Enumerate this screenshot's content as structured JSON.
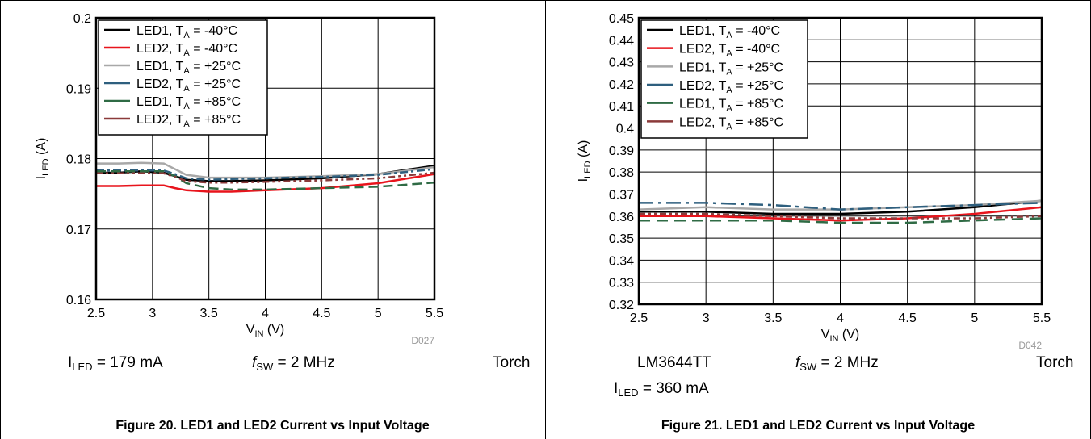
{
  "colors": {
    "LED1_m40": "#000000",
    "LED2_m40": "#e8141c",
    "LED1_p25": "#a8a8a8",
    "LED2_p25": "#2e5f7e",
    "LED1_p85": "#2f6b45",
    "LED2_p85": "#8b3a3a"
  },
  "panels": [
    {
      "conditions": {
        "iled_label": "I",
        "iled_sub": "LED",
        "iled_value": " = 179 mA",
        "fsw_f": "f",
        "fsw_sub": "SW",
        "fsw_value": " = 2 MHz",
        "mode": "Torch"
      },
      "caption": "Figure 20. LED1 and LED2 Current vs Input Voltage"
    },
    {
      "conditions": {
        "device": "LM3644TT",
        "iled_label": "I",
        "iled_sub": "LED",
        "iled_value": " = 360 mA",
        "fsw_f": "f",
        "fsw_sub": "SW",
        "fsw_value": " = 2 MHz",
        "mode": "Torch"
      },
      "caption": "Figure 21. LED1 and LED2 Current vs Input Voltage"
    }
  ],
  "chart_data": [
    {
      "type": "line",
      "title": "",
      "xlabel": "V",
      "xlabel_sub": "IN",
      "xlabel_unit": " (V)",
      "ylabel": "I",
      "ylabel_sub": "LED",
      "ylabel_unit": " (A)",
      "xlim": [
        2.5,
        5.5
      ],
      "ylim": [
        0.16,
        0.2
      ],
      "xticks": [
        2.5,
        3,
        3.5,
        4,
        4.5,
        5,
        5.5
      ],
      "xtick_labels": [
        "2.5",
        "3",
        "3.5",
        "4",
        "4.5",
        "5",
        "5.5"
      ],
      "yticks": [
        0.16,
        0.17,
        0.18,
        0.19,
        0.2
      ],
      "ytick_labels": [
        "0.16",
        "0.17",
        "0.18",
        "0.19",
        "0.2"
      ],
      "grid": true,
      "legend_position": "top-left",
      "code": "D027",
      "series": [
        {
          "name_main": "LED1, T",
          "name_sub": "A",
          "name_rest": " = -40°C",
          "color_key": "LED1_m40",
          "dash": "",
          "x": [
            2.5,
            2.7,
            2.9,
            3.1,
            3.2,
            3.3,
            3.5,
            3.7,
            4.0,
            4.5,
            5.0,
            5.5
          ],
          "y": [
            0.178,
            0.178,
            0.1782,
            0.178,
            0.1775,
            0.177,
            0.1768,
            0.1768,
            0.1769,
            0.1772,
            0.1778,
            0.179
          ]
        },
        {
          "name_main": "LED2, T",
          "name_sub": "A",
          "name_rest": " = -40°C",
          "color_key": "LED2_m40",
          "dash": "",
          "x": [
            2.5,
            2.7,
            2.9,
            3.1,
            3.2,
            3.3,
            3.5,
            3.7,
            4.0,
            4.5,
            5.0,
            5.5
          ],
          "y": [
            0.1761,
            0.1761,
            0.1762,
            0.1762,
            0.1758,
            0.1755,
            0.1753,
            0.1753,
            0.1755,
            0.1758,
            0.1765,
            0.1778
          ]
        },
        {
          "name_main": "LED1, T",
          "name_sub": "A",
          "name_rest": " = +25°C",
          "color_key": "LED1_p25",
          "dash": "",
          "x": [
            2.5,
            2.7,
            2.9,
            3.1,
            3.2,
            3.3,
            3.5,
            3.7,
            4.0,
            4.5,
            5.0,
            5.5
          ],
          "y": [
            0.1793,
            0.1793,
            0.1794,
            0.1793,
            0.1785,
            0.1777,
            0.1773,
            0.1773,
            0.1773,
            0.1775,
            0.1778,
            0.1788
          ]
        },
        {
          "name_main": "LED2, T",
          "name_sub": "A",
          "name_rest": " = +25°C",
          "color_key": "LED2_p25",
          "dash": "10,4,3,4",
          "x": [
            2.5,
            2.7,
            2.9,
            3.1,
            3.2,
            3.3,
            3.5,
            3.7,
            4.0,
            4.5,
            5.0,
            5.5
          ],
          "y": [
            0.1783,
            0.1783,
            0.1783,
            0.1783,
            0.1778,
            0.1772,
            0.177,
            0.1771,
            0.1772,
            0.1774,
            0.1777,
            0.1785
          ]
        },
        {
          "name_main": "LED1, T",
          "name_sub": "A",
          "name_rest": " = +85°C",
          "color_key": "LED1_p85",
          "dash": "12,6",
          "x": [
            2.5,
            2.7,
            2.9,
            3.1,
            3.2,
            3.3,
            3.5,
            3.7,
            4.0,
            4.5,
            5.0,
            5.5
          ],
          "y": [
            0.1782,
            0.1782,
            0.1782,
            0.1782,
            0.1775,
            0.1765,
            0.1758,
            0.1756,
            0.1756,
            0.1758,
            0.176,
            0.1766
          ]
        },
        {
          "name_main": "LED2, T",
          "name_sub": "A",
          "name_rest": " = +85°C",
          "color_key": "LED2_p85",
          "dash": "8,4,3,4,3,4",
          "x": [
            2.5,
            2.7,
            2.9,
            3.1,
            3.2,
            3.3,
            3.5,
            3.7,
            4.0,
            4.5,
            5.0,
            5.5
          ],
          "y": [
            0.1779,
            0.1779,
            0.1779,
            0.1779,
            0.1774,
            0.1768,
            0.1766,
            0.1766,
            0.1767,
            0.1769,
            0.1772,
            0.178
          ]
        }
      ]
    },
    {
      "type": "line",
      "title": "",
      "xlabel": "V",
      "xlabel_sub": "IN",
      "xlabel_unit": " (V)",
      "ylabel": "I",
      "ylabel_sub": "LED",
      "ylabel_unit": " (A)",
      "xlim": [
        2.5,
        5.5
      ],
      "ylim": [
        0.32,
        0.45
      ],
      "xticks": [
        2.5,
        3,
        3.5,
        4,
        4.5,
        5,
        5.5
      ],
      "xtick_labels": [
        "2.5",
        "3",
        "3.5",
        "4",
        "4.5",
        "5",
        "5.5"
      ],
      "yticks": [
        0.32,
        0.33,
        0.34,
        0.35,
        0.36,
        0.37,
        0.38,
        0.39,
        0.4,
        0.41,
        0.42,
        0.43,
        0.44,
        0.45
      ],
      "ytick_labels": [
        "0.32",
        "0.33",
        "0.34",
        "0.35",
        "0.36",
        "0.37",
        "0.38",
        "0.39",
        "0.4",
        "0.41",
        "0.42",
        "0.43",
        "0.44",
        "0.45"
      ],
      "grid": true,
      "legend_position": "top-left",
      "code": "D042",
      "series": [
        {
          "name_main": "LED1, T",
          "name_sub": "A",
          "name_rest": " = -40°C",
          "color_key": "LED1_m40",
          "dash": "",
          "x": [
            2.5,
            3.0,
            3.5,
            4.0,
            4.5,
            5.0,
            5.5
          ],
          "y": [
            0.362,
            0.362,
            0.361,
            0.361,
            0.362,
            0.364,
            0.367
          ]
        },
        {
          "name_main": "LED2, T",
          "name_sub": "A",
          "name_rest": " = -40°C",
          "color_key": "LED2_m40",
          "dash": "",
          "x": [
            2.5,
            3.0,
            3.5,
            4.0,
            4.5,
            5.0,
            5.5
          ],
          "y": [
            0.36,
            0.36,
            0.359,
            0.358,
            0.359,
            0.361,
            0.364
          ]
        },
        {
          "name_main": "LED1, T",
          "name_sub": "A",
          "name_rest": " = +25°C",
          "color_key": "LED1_p25",
          "dash": "",
          "x": [
            2.5,
            3.0,
            3.5,
            4.0,
            4.5,
            5.0,
            5.5
          ],
          "y": [
            0.363,
            0.364,
            0.363,
            0.363,
            0.364,
            0.365,
            0.367
          ]
        },
        {
          "name_main": "LED2, T",
          "name_sub": "A",
          "name_rest": " = +25°C",
          "color_key": "LED2_p25",
          "dash": "18,6,4,6",
          "x": [
            2.5,
            3.0,
            3.5,
            4.0,
            4.5,
            5.0,
            5.5
          ],
          "y": [
            0.366,
            0.366,
            0.365,
            0.363,
            0.364,
            0.365,
            0.366
          ]
        },
        {
          "name_main": "LED1, T",
          "name_sub": "A",
          "name_rest": " = +85°C",
          "color_key": "LED1_p85",
          "dash": "14,8",
          "x": [
            2.5,
            3.0,
            3.5,
            4.0,
            4.5,
            5.0,
            5.5
          ],
          "y": [
            0.358,
            0.358,
            0.358,
            0.357,
            0.357,
            0.358,
            0.359
          ]
        },
        {
          "name_main": "LED2, T",
          "name_sub": "A",
          "name_rest": " = +85°C",
          "color_key": "LED2_p85",
          "dash": "8,4,3,4,3,4",
          "x": [
            2.5,
            3.0,
            3.5,
            4.0,
            4.5,
            5.0,
            5.5
          ],
          "y": [
            0.361,
            0.361,
            0.36,
            0.359,
            0.359,
            0.359,
            0.36
          ]
        }
      ]
    }
  ]
}
